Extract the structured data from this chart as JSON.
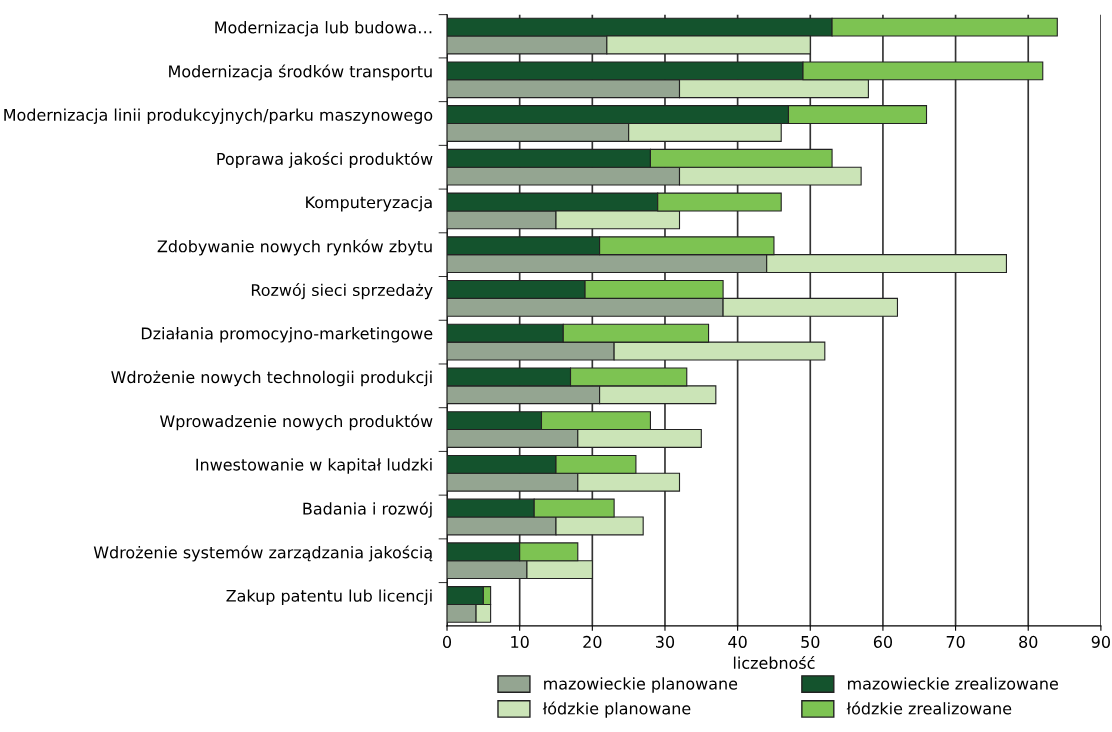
{
  "chart_data": {
    "type": "bar",
    "orientation": "horizontal",
    "stacked": true,
    "xlabel": "liczebność",
    "categories": [
      "Modernizacja lub budowa…",
      null,
      "Modernizacja środków transportu",
      null,
      "Modernizacja linii produkcyjnych/parku maszynowego",
      null,
      "Poprawa jakości produktów",
      null,
      "Komputeryzacja",
      null,
      "Zdobywanie nowych rynków zbytu",
      null,
      "Rozwój sieci sprzedaży",
      null,
      "Działania promocyjno-marketingowe",
      null,
      "Wdrożenie nowych technologii produkcji",
      null,
      "Wprowadzenie nowych produktów",
      null,
      "Inwestowanie w kapitał ludzki",
      null,
      "Badania i rozwój",
      null,
      "Wdrożenie systemów zarządzania jakością",
      null,
      "Zakup patentu lub licencji",
      null
    ],
    "series": [
      {
        "name": "mazowieckie planowane",
        "color": "#94a591",
        "values": [
          null,
          22,
          null,
          32,
          null,
          25,
          null,
          32,
          null,
          15,
          null,
          44,
          null,
          38,
          null,
          23,
          null,
          21,
          null,
          18,
          null,
          18,
          null,
          15,
          null,
          11,
          null,
          4
        ]
      },
      {
        "name": "mazowieckie zrealizowane",
        "color": "#14532d",
        "values": [
          53,
          null,
          49,
          null,
          47,
          null,
          28,
          null,
          29,
          null,
          21,
          null,
          19,
          null,
          16,
          null,
          17,
          null,
          13,
          null,
          15,
          null,
          12,
          null,
          10,
          null,
          5,
          null
        ]
      },
      {
        "name": "łódzkie planowane",
        "color": "#cbe4b7",
        "values": [
          null,
          28,
          null,
          26,
          null,
          21,
          null,
          25,
          null,
          17,
          null,
          33,
          null,
          24,
          null,
          29,
          null,
          16,
          null,
          17,
          null,
          14,
          null,
          12,
          null,
          9,
          null,
          2
        ]
      },
      {
        "name": "łódzkie zrealizowane",
        "color": "#7dc352",
        "values": [
          31,
          null,
          33,
          null,
          19,
          null,
          25,
          null,
          17,
          null,
          24,
          null,
          19,
          null,
          20,
          null,
          16,
          null,
          15,
          null,
          11,
          null,
          11,
          null,
          8,
          null,
          1,
          null
        ]
      }
    ],
    "xlim": [
      0,
      90
    ],
    "xticks": [
      0,
      10,
      20,
      30,
      40,
      50,
      60,
      70,
      80,
      90
    ],
    "grid": "x",
    "legend": "bottom"
  }
}
